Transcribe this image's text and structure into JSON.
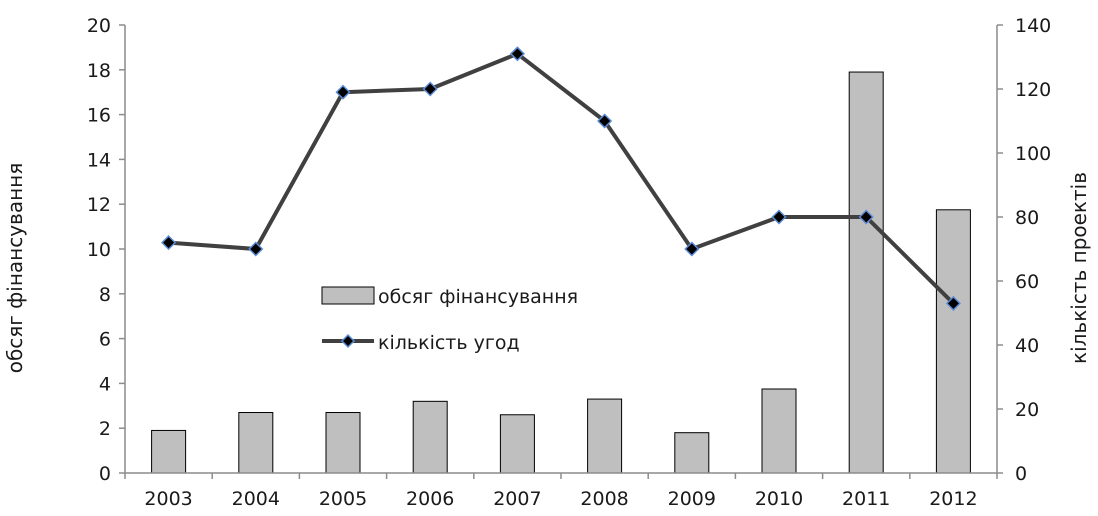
{
  "chart_data": {
    "type": "bar",
    "categories": [
      "2003",
      "2004",
      "2005",
      "2006",
      "2007",
      "2008",
      "2009",
      "2010",
      "2011",
      "2012"
    ],
    "series": [
      {
        "name": "обсяг фінансування",
        "type": "bar",
        "axis": "left",
        "values": [
          1.9,
          2.7,
          2.7,
          3.2,
          2.6,
          3.3,
          1.8,
          3.75,
          17.9,
          11.75
        ],
        "color": "#bfbfbf"
      },
      {
        "name": "кількість угод",
        "type": "line",
        "axis": "right",
        "values": [
          72,
          70,
          119,
          120,
          131,
          110,
          70,
          80,
          80,
          53
        ],
        "color": "#404040",
        "marker_color": "#000000",
        "marker_edge": "#5b8bd6"
      }
    ],
    "ylabel": "обсяг фінансування",
    "ylabel_right": "кількість проектів",
    "ylim": [
      0,
      20
    ],
    "y_ticks": [
      0,
      2,
      4,
      6,
      8,
      10,
      12,
      14,
      16,
      18,
      20
    ],
    "ylim_right": [
      0,
      140
    ],
    "y_ticks_right": [
      0,
      20,
      40,
      60,
      80,
      100,
      120,
      140
    ],
    "grid": false,
    "legend_position": "center"
  }
}
